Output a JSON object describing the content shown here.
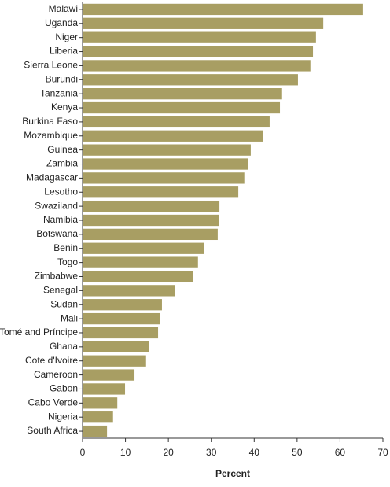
{
  "chart_data": {
    "type": "barh",
    "xlabel": "Percent",
    "categories": [
      "Malawi",
      "Uganda",
      "Niger",
      "Liberia",
      "Sierra Leone",
      "Burundi",
      "Tanzania",
      "Kenya",
      "Burkina Faso",
      "Mozambique",
      "Guinea",
      "Zambia",
      "Madagascar",
      "Lesotho",
      "Swaziland",
      "Namibia",
      "Botswana",
      "Benin",
      "Togo",
      "Zimbabwe",
      "Senegal",
      "Sudan",
      "Mali",
      "São Tomé and Príncipe",
      "Ghana",
      "Cote d'Ivoire",
      "Cameroon",
      "Gabon",
      "Cabo Verde",
      "Nigeria",
      "South Africa"
    ],
    "values": [
      65.4,
      56.1,
      54.4,
      53.7,
      53.1,
      50.2,
      46.5,
      46.0,
      43.6,
      42.0,
      39.2,
      38.5,
      37.7,
      36.3,
      31.9,
      31.7,
      31.5,
      28.4,
      26.9,
      25.8,
      21.6,
      18.5,
      18.0,
      17.6,
      15.4,
      14.8,
      12.1,
      9.9,
      8.1,
      7.1,
      5.7
    ],
    "color": "#a89e63",
    "xlim": [
      0,
      70
    ],
    "xticks": [
      0,
      10,
      20,
      30,
      40,
      50,
      60,
      70
    ],
    "grid": false
  }
}
